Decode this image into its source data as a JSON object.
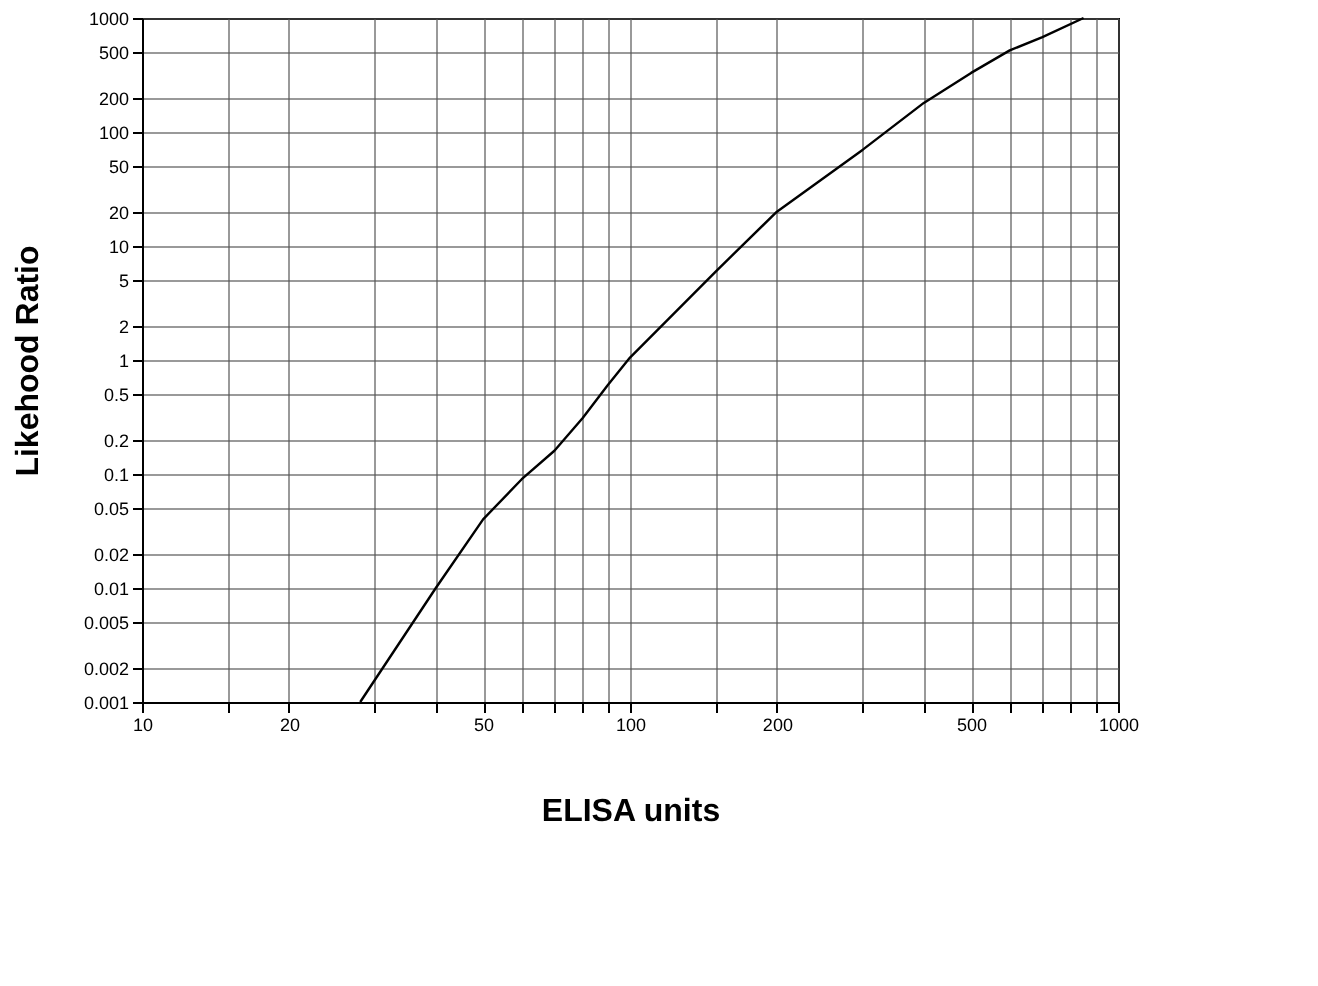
{
  "chart_data": {
    "type": "line",
    "xlabel": "ELISA units",
    "ylabel": "Likehood Ratio",
    "x": [
      28,
      40,
      50,
      60,
      70,
      80,
      90,
      100,
      150,
      200,
      300,
      400,
      500,
      600,
      700,
      850
    ],
    "series": [
      {
        "color": "#000000",
        "values": [
          0.001,
          0.01,
          0.04,
          0.09,
          0.16,
          0.31,
          0.6,
          1.05,
          6,
          20,
          70,
          180,
          330,
          520,
          680,
          1000
        ]
      }
    ],
    "log": "xy",
    "xlim": [
      10,
      1000
    ],
    "ylim": [
      0.001,
      1000
    ],
    "xticks": [
      10,
      {
        "value": 15,
        "label": null
      },
      20,
      {
        "value": 30,
        "label": null
      },
      {
        "value": 40,
        "label": null
      },
      50,
      {
        "value": 60,
        "label": null
      },
      {
        "value": 70,
        "label": null
      },
      {
        "value": 80,
        "label": null
      },
      {
        "value": 90,
        "label": null
      },
      100,
      {
        "value": 150,
        "label": null
      },
      200,
      {
        "value": 300,
        "label": null
      },
      {
        "value": 400,
        "label": null
      },
      500,
      {
        "value": 600,
        "label": null
      },
      {
        "value": 700,
        "label": null
      },
      {
        "value": 800,
        "label": null
      },
      {
        "value": 900,
        "label": null
      },
      1000
    ],
    "yticks": [
      0.001,
      0.002,
      0.005,
      0.01,
      0.02,
      0.05,
      0.1,
      0.2,
      0.5,
      1,
      2,
      5,
      10,
      20,
      50,
      100,
      200,
      500,
      1000
    ],
    "grid": true,
    "marker": "none",
    "line_style": "solid",
    "legend": false
  }
}
